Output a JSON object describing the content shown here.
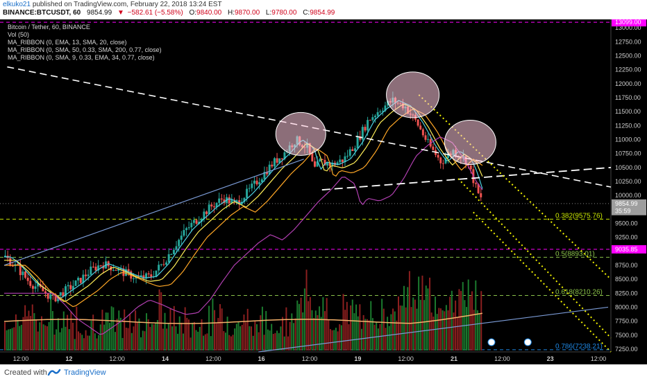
{
  "header": {
    "user": "elkuko21",
    "published_text": "published on TradingView.com, February 22, 2018 13:24 EST"
  },
  "quote": {
    "symbol": "BINANCE:BTCUSDT, 60",
    "last": "9854.99",
    "change_arrow": "▼",
    "change": "−582.61 (−5.58%)",
    "open_label": "O:",
    "open": "9840.00",
    "high_label": "H:",
    "high": "9870.00",
    "low_label": "L:",
    "low": "9780.00",
    "close_label": "C:",
    "close": "9854.99"
  },
  "legend": {
    "title": "Bitcoin / Tether, 60, BINANCE",
    "items": [
      "Vol (50)",
      "MA_RIBBON (0, EMA, 13, SMA, 20, close)",
      "MA_RIBBON (0, SMA, 50, 0.33, SMA, 200, 0.77, close)",
      "MA_RIBBON (0, SMA, 9, 0.33, EMA, 34, 0.77, close)"
    ]
  },
  "footer": {
    "created_with": "Created with",
    "brand": "TradingView"
  },
  "colors": {
    "background": "#000000",
    "up_candle": "#26a69a",
    "down_candle": "#ef5350",
    "magenta": "#ff00ff",
    "yellow": "#f5f500",
    "fib": "#8bc34a",
    "blue_line": "#7b9bd6"
  },
  "chart_data": {
    "type": "candlestick",
    "y_scale": "linear",
    "ylim": [
      7200,
      13150
    ],
    "yticks": [
      "13000.00",
      "12750.00",
      "12500.00",
      "12250.00",
      "12000.00",
      "11750.00",
      "11500.00",
      "11250.00",
      "11000.00",
      "10750.00",
      "10500.00",
      "10250.00",
      "10000.00",
      "9750.00",
      "9500.00",
      "9250.00",
      "9000.00",
      "8750.00",
      "8500.00",
      "8250.00",
      "8000.00",
      "7750.00",
      "7500.00",
      "7250.00"
    ],
    "xticks": [
      "12:00",
      "12",
      "12:00",
      "14",
      "12:00",
      "16",
      "12:00",
      "19",
      "12:00",
      "21",
      "12:00",
      "23",
      "12:00"
    ],
    "x_dates": [
      "Feb 11 12:00",
      "Feb 12",
      "Feb 12 12:00",
      "Feb 14",
      "Feb 15 12:00",
      "Feb 16",
      "Feb 17 12:00",
      "Feb 19",
      "Feb 20 12:00",
      "Feb 21",
      "Feb 22 12:00",
      "Feb 23",
      "Feb 23 12:00"
    ],
    "price_labels": [
      {
        "text": "13099.00",
        "value": 13099,
        "color": "#ff00ff"
      },
      {
        "text": "9854.99",
        "value": 9854.99,
        "color": "#9e9e9e"
      },
      {
        "text": "35:59",
        "value": 9720,
        "color": "#9e9e9e"
      },
      {
        "text": "9035.85",
        "value": 9035.85,
        "color": "#ff00ff"
      }
    ],
    "horizontal_levels": [
      {
        "value": 13099,
        "color": "#ff00ff",
        "style": "dashed"
      },
      {
        "value": 9035.85,
        "color": "#ff00ff",
        "style": "dashed"
      },
      {
        "value": 9575.76,
        "color": "#c8e600",
        "style": "dashed"
      },
      {
        "value": 8893.01,
        "color": "#8bc34a",
        "style": "dashed"
      },
      {
        "value": 8210.26,
        "color": "#8bc34a",
        "style": "dashed"
      },
      {
        "value": 7238.21,
        "color": "#1e88e5",
        "style": "dashed"
      }
    ],
    "fib_labels": [
      {
        "text": "0.382(9575.76)",
        "value": 9575.76,
        "color": "#c8e600"
      },
      {
        "text": "0.5(8893.01)",
        "value": 8893.01,
        "color": "#8bc34a"
      },
      {
        "text": "0.618(8210.26)",
        "value": 8210.26,
        "color": "#8bc34a"
      },
      {
        "text": "0.786(7238.21)",
        "value": 7238.21,
        "color": "#1e88e5"
      }
    ],
    "price_path": [
      [
        0.0,
        8900
      ],
      [
        0.02,
        8700
      ],
      [
        0.04,
        8450
      ],
      [
        0.06,
        8300
      ],
      [
        0.08,
        8150
      ],
      [
        0.1,
        8300
      ],
      [
        0.12,
        8450
      ],
      [
        0.14,
        8650
      ],
      [
        0.16,
        8780
      ],
      [
        0.18,
        8700
      ],
      [
        0.2,
        8600
      ],
      [
        0.22,
        8520
      ],
      [
        0.24,
        8550
      ],
      [
        0.26,
        8780
      ],
      [
        0.28,
        9100
      ],
      [
        0.3,
        9400
      ],
      [
        0.32,
        9600
      ],
      [
        0.34,
        9800
      ],
      [
        0.36,
        9950
      ],
      [
        0.38,
        9850
      ],
      [
        0.4,
        10050
      ],
      [
        0.42,
        10300
      ],
      [
        0.44,
        10550
      ],
      [
        0.46,
        10750
      ],
      [
        0.48,
        11000
      ],
      [
        0.5,
        10850
      ],
      [
        0.51,
        10450
      ],
      [
        0.52,
        10600
      ],
      [
        0.54,
        10550
      ],
      [
        0.56,
        10650
      ],
      [
        0.58,
        10950
      ],
      [
        0.6,
        11350
      ],
      [
        0.62,
        11550
      ],
      [
        0.64,
        11700
      ],
      [
        0.66,
        11600
      ],
      [
        0.68,
        11300
      ],
      [
        0.7,
        10900
      ],
      [
        0.72,
        10600
      ],
      [
        0.74,
        10800
      ],
      [
        0.76,
        10650
      ],
      [
        0.77,
        10400
      ],
      [
        0.78,
        10050
      ],
      [
        0.79,
        9854.99
      ]
    ],
    "volume_profile": [
      0.3,
      0.45,
      0.5,
      0.3,
      0.35,
      0.4,
      0.3,
      0.25,
      0.3,
      0.35,
      0.3,
      0.25,
      0.3,
      0.4,
      0.5,
      0.35,
      0.3,
      0.25,
      0.3,
      0.35,
      0.4,
      0.3,
      0.35,
      0.3,
      0.25,
      0.3,
      0.35,
      0.6,
      0.8,
      0.5,
      0.4,
      0.45,
      0.5,
      0.35,
      0.4,
      0.55,
      0.6,
      0.7,
      0.9,
      1.0,
      0.6,
      0.7,
      0.8,
      0.9,
      0.85
    ]
  }
}
